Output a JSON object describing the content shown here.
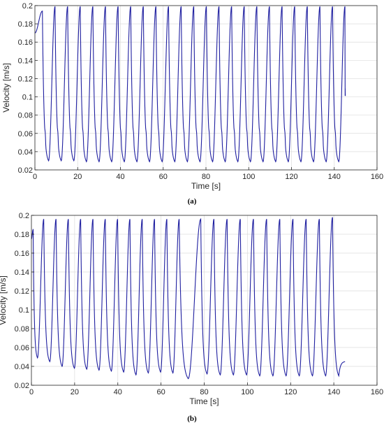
{
  "chart_data": [
    {
      "type": "line",
      "panel_label": "(a)",
      "xlabel": "Time [s]",
      "ylabel": "Velocity [m/s]",
      "xlim": [
        0,
        160
      ],
      "ylim": [
        0.02,
        0.2
      ],
      "xticks": [
        0,
        20,
        40,
        60,
        80,
        100,
        120,
        140,
        160
      ],
      "yticks": [
        0.02,
        0.04,
        0.06,
        0.08,
        0.1,
        0.12,
        0.14,
        0.16,
        0.18,
        0.2
      ],
      "xtick_labels": [
        "0",
        "20",
        "40",
        "60",
        "80",
        "100",
        "120",
        "140",
        "160"
      ],
      "ytick_labels": [
        "0.02",
        "0.04",
        "0.06",
        "0.08",
        "0.1",
        "0.12",
        "0.14",
        "0.16",
        "0.18",
        "0.2"
      ],
      "grid": true,
      "line_color": "#1f1fa0",
      "series": [
        {
          "peak_times": [
            3.5,
            9.4,
            15.3,
            21.2,
            27.1,
            33.0,
            38.9,
            44.8,
            50.7,
            56.6,
            62.5,
            68.4,
            74.3,
            80.2,
            86.1,
            92.0,
            97.9,
            103.8,
            109.7,
            115.6,
            121.5,
            127.4,
            133.3,
            139.2,
            145.0
          ],
          "peak_values": [
            0.194,
            0.199,
            0.199,
            0.199,
            0.199,
            0.199,
            0.199,
            0.199,
            0.199,
            0.199,
            0.199,
            0.199,
            0.199,
            0.199,
            0.199,
            0.199,
            0.199,
            0.199,
            0.199,
            0.199,
            0.199,
            0.199,
            0.199,
            0.199,
            0.199
          ],
          "trough_times": [
            6.4,
            12.3,
            18.2,
            24.1,
            30.0,
            35.9,
            41.8,
            47.7,
            53.6,
            59.5,
            65.4,
            71.3,
            77.2,
            83.1,
            89.0,
            94.9,
            100.8,
            106.7,
            112.6,
            118.5,
            124.4,
            130.3,
            136.2,
            142.1
          ],
          "trough_values": [
            0.03,
            0.03,
            0.03,
            0.029,
            0.029,
            0.029,
            0.029,
            0.029,
            0.029,
            0.029,
            0.029,
            0.029,
            0.029,
            0.029,
            0.029,
            0.029,
            0.029,
            0.029,
            0.029,
            0.029,
            0.029,
            0.029,
            0.029,
            0.029
          ],
          "shoulder_value": 0.075,
          "start": [
            0,
            0.17
          ],
          "end": [
            145.2,
            0.101
          ]
        }
      ]
    },
    {
      "type": "line",
      "panel_label": "(b)",
      "xlabel": "Time [s]",
      "ylabel": "Velocity [m/s]",
      "xlim": [
        0,
        160
      ],
      "ylim": [
        0.02,
        0.2
      ],
      "xticks": [
        0,
        20,
        40,
        60,
        80,
        100,
        120,
        140,
        160
      ],
      "yticks": [
        0.02,
        0.04,
        0.06,
        0.08,
        0.1,
        0.12,
        0.14,
        0.16,
        0.18,
        0.2
      ],
      "xtick_labels": [
        "0",
        "20",
        "40",
        "60",
        "80",
        "100",
        "120",
        "140",
        "160"
      ],
      "ytick_labels": [
        "0.02",
        "0.04",
        "0.06",
        "0.08",
        "0.1",
        "0.12",
        "0.14",
        "0.16",
        "0.18",
        "0.2"
      ],
      "grid": true,
      "line_color": "#1f1fa0",
      "series": [
        {
          "peak_times": [
            0.8,
            5.7,
            11.4,
            17.1,
            22.8,
            28.5,
            34.2,
            39.9,
            45.6,
            51.3,
            57.0,
            62.7,
            68.4,
            78.4,
            84.5,
            90.6,
            96.7,
            102.8,
            108.9,
            115.0,
            121.1,
            127.2,
            133.3,
            139.4
          ],
          "peak_values": [
            0.185,
            0.196,
            0.196,
            0.196,
            0.196,
            0.196,
            0.196,
            0.196,
            0.196,
            0.196,
            0.196,
            0.196,
            0.196,
            0.196,
            0.196,
            0.196,
            0.196,
            0.196,
            0.196,
            0.196,
            0.196,
            0.196,
            0.196,
            0.198
          ],
          "trough_times": [
            2.8,
            8.5,
            14.2,
            19.9,
            25.6,
            31.3,
            37.0,
            42.7,
            48.4,
            54.1,
            59.8,
            65.5,
            72.6,
            81.3,
            87.4,
            93.5,
            99.6,
            105.7,
            111.8,
            117.9,
            124.0,
            130.1,
            136.2,
            142.3
          ],
          "trough_values": [
            0.049,
            0.045,
            0.04,
            0.038,
            0.037,
            0.036,
            0.035,
            0.034,
            0.031,
            0.033,
            0.034,
            0.033,
            0.027,
            0.032,
            0.031,
            0.031,
            0.031,
            0.03,
            0.03,
            0.03,
            0.03,
            0.03,
            0.03,
            0.03
          ],
          "start": [
            0,
            0.175
          ],
          "end": [
            145.2,
            0.045
          ]
        }
      ]
    }
  ]
}
